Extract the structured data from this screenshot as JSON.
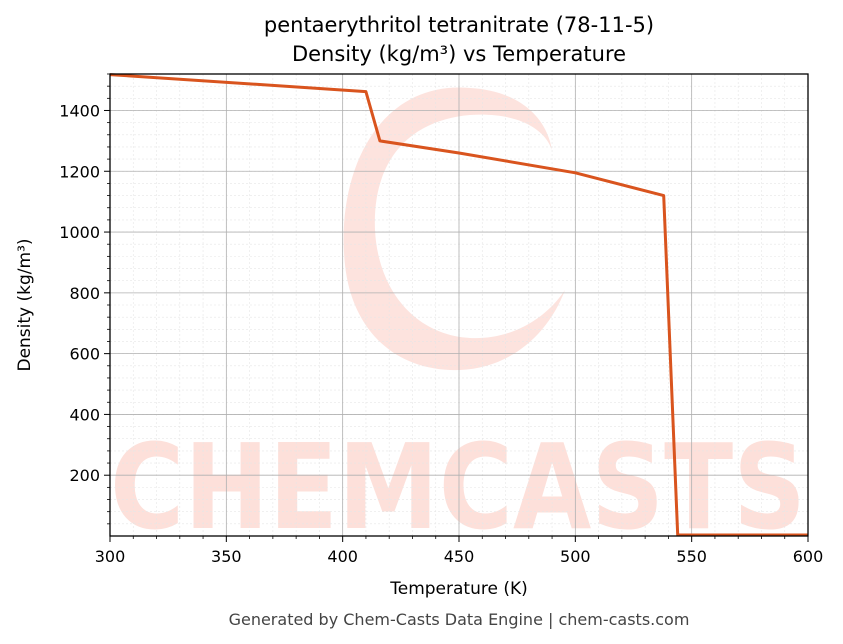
{
  "chart_data": {
    "type": "line",
    "title_line1": "pentaerythritol tetranitrate (78-11-5)",
    "title_line2": "Density (kg/m³) vs Temperature",
    "xlabel": "Temperature (K)",
    "ylabel": "Density (kg/m³)",
    "xlim": [
      300,
      600
    ],
    "ylim": [
      0,
      1520
    ],
    "x_ticks": [
      300,
      350,
      400,
      450,
      500,
      550,
      600
    ],
    "y_ticks": [
      200,
      400,
      600,
      800,
      1000,
      1200,
      1400
    ],
    "grid": true,
    "line_color": "#d9541e",
    "series": [
      {
        "x": [
          300,
          410,
          416,
          450,
          500,
          538,
          544,
          600
        ],
        "y": [
          1518,
          1462,
          1300,
          1260,
          1195,
          1120,
          0,
          0
        ]
      }
    ]
  },
  "watermark": {
    "text": "CHEMCASTS",
    "color": "#fde0da"
  },
  "footer": "Generated by Chem-Casts Data Engine | chem-casts.com"
}
